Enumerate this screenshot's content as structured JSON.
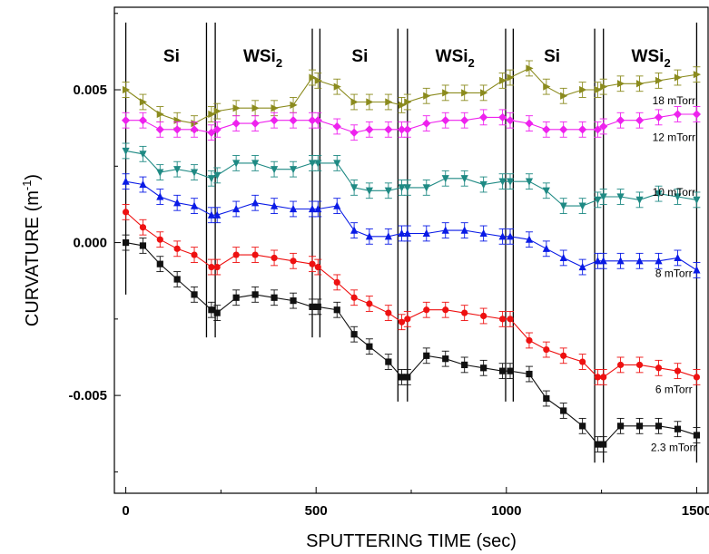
{
  "chart_data": {
    "type": "line",
    "xlabel": "SPUTTERING TIME (sec)",
    "ylabel": "CURVATURE (m",
    "ylabel_sup": "-1",
    "ylabel_end": ")",
    "xlim": [
      -30,
      1530
    ],
    "ylim": [
      -0.0082,
      0.0077
    ],
    "x_ticks": [
      0,
      500,
      1000,
      1500
    ],
    "x_tick_labels": [
      "0",
      "500",
      "1000",
      "1500"
    ],
    "y_ticks": [
      -0.005,
      0.0,
      0.005
    ],
    "y_tick_labels": [
      "-0.005",
      "0.000",
      "0.005"
    ],
    "grid": false,
    "regions": [
      {
        "label": "Si",
        "sub": "",
        "x_center": 120
      },
      {
        "label": "WSi",
        "sub": "2",
        "x_center": 360
      },
      {
        "label": "Si",
        "sub": "",
        "x_center": 615
      },
      {
        "label": "WSi",
        "sub": "2",
        "x_center": 865
      },
      {
        "label": "Si",
        "sub": "",
        "x_center": 1120
      },
      {
        "label": "WSi",
        "sub": "2",
        "x_center": 1380
      }
    ],
    "boundary_lines": [
      {
        "x": 0,
        "y_top": 0.0072,
        "y_bottom": -0.0017
      },
      {
        "x": 212,
        "y_top": 0.0072,
        "y_bottom": -0.0031
      },
      {
        "x": 235,
        "y_top": 0.0072,
        "y_bottom": -0.0031
      },
      {
        "x": 490,
        "y_top": 0.007,
        "y_bottom": -0.0031
      },
      {
        "x": 510,
        "y_top": 0.007,
        "y_bottom": -0.0031
      },
      {
        "x": 715,
        "y_top": 0.007,
        "y_bottom": -0.0052
      },
      {
        "x": 740,
        "y_top": 0.007,
        "y_bottom": -0.0052
      },
      {
        "x": 998,
        "y_top": 0.007,
        "y_bottom": -0.0052
      },
      {
        "x": 1018,
        "y_top": 0.007,
        "y_bottom": -0.0052
      },
      {
        "x": 1232,
        "y_top": 0.007,
        "y_bottom": -0.0072
      },
      {
        "x": 1255,
        "y_top": 0.007,
        "y_bottom": -0.0072
      },
      {
        "x": 1500,
        "y_top": 0.0072,
        "y_bottom": -0.0072
      }
    ],
    "x": [
      0,
      45,
      90,
      135,
      180,
      225,
      240,
      290,
      340,
      390,
      440,
      490,
      505,
      555,
      600,
      640,
      690,
      725,
      740,
      790,
      840,
      890,
      940,
      990,
      1010,
      1060,
      1105,
      1150,
      1200,
      1240,
      1255,
      1300,
      1350,
      1400,
      1450,
      1500
    ],
    "series": [
      {
        "name": "18 mTorr",
        "color": "#8b8b1e",
        "marker": "triangle-right",
        "label_value": 0.00465,
        "label_x": 1440,
        "values": [
          0.005,
          0.0046,
          0.0042,
          0.004,
          0.0039,
          0.0042,
          0.0043,
          0.0044,
          0.0044,
          0.0044,
          0.0045,
          0.0054,
          0.0053,
          0.0051,
          0.0046,
          0.0046,
          0.0046,
          0.0045,
          0.0046,
          0.0048,
          0.0049,
          0.0049,
          0.0049,
          0.0053,
          0.0054,
          0.0057,
          0.0051,
          0.0048,
          0.005,
          0.005,
          0.0051,
          0.0052,
          0.0052,
          0.0053,
          0.0054,
          0.0055
        ]
      },
      {
        "name": "12 mTorr",
        "color": "#ee22ee",
        "marker": "diamond",
        "label_value": 0.00345,
        "label_x": 1440,
        "values": [
          0.004,
          0.004,
          0.0037,
          0.0037,
          0.0037,
          0.0036,
          0.0037,
          0.0039,
          0.0039,
          0.004,
          0.004,
          0.004,
          0.004,
          0.0038,
          0.0036,
          0.0037,
          0.0037,
          0.0037,
          0.0037,
          0.0039,
          0.004,
          0.004,
          0.0041,
          0.0041,
          0.004,
          0.0039,
          0.0037,
          0.0037,
          0.0037,
          0.0037,
          0.0038,
          0.004,
          0.004,
          0.0041,
          0.0042,
          0.0042
        ]
      },
      {
        "name": "10 mTorr",
        "color": "#1f8a84",
        "marker": "triangle-down",
        "label_value": 0.00165,
        "label_x": 1440,
        "values": [
          0.003,
          0.0029,
          0.0023,
          0.0024,
          0.0023,
          0.0021,
          0.0022,
          0.0026,
          0.0026,
          0.0024,
          0.0024,
          0.0026,
          0.0026,
          0.0026,
          0.0018,
          0.0017,
          0.0017,
          0.0018,
          0.0018,
          0.0018,
          0.0021,
          0.0021,
          0.0019,
          0.002,
          0.002,
          0.002,
          0.0017,
          0.0012,
          0.0012,
          0.0014,
          0.0015,
          0.0015,
          0.0014,
          0.0016,
          0.0015,
          0.0014
        ]
      },
      {
        "name": "8 mTorr",
        "color": "#0a1be6",
        "marker": "triangle-up",
        "label_value": -0.001,
        "label_x": 1440,
        "values": [
          0.002,
          0.0019,
          0.0015,
          0.0013,
          0.0012,
          0.0009,
          0.0009,
          0.0011,
          0.0013,
          0.0012,
          0.0011,
          0.0011,
          0.0011,
          0.0012,
          0.0004,
          0.0002,
          0.0002,
          0.0003,
          0.0003,
          0.0003,
          0.0004,
          0.0004,
          0.0003,
          0.0002,
          0.0002,
          0.0001,
          -0.0002,
          -0.0005,
          -0.0008,
          -0.0006,
          -0.0006,
          -0.0006,
          -0.0006,
          -0.0006,
          -0.0005,
          -0.0009
        ]
      },
      {
        "name": "6 mTorr",
        "color": "#ee1111",
        "marker": "circle",
        "label_value": -0.0048,
        "label_x": 1440,
        "values": [
          0.001,
          0.0005,
          0.0001,
          -0.0002,
          -0.0004,
          -0.0008,
          -0.0008,
          -0.0004,
          -0.0004,
          -0.0005,
          -0.0006,
          -0.0007,
          -0.0008,
          -0.0013,
          -0.0018,
          -0.002,
          -0.0023,
          -0.0026,
          -0.0025,
          -0.0022,
          -0.0022,
          -0.0023,
          -0.0024,
          -0.0025,
          -0.0025,
          -0.0032,
          -0.0035,
          -0.0037,
          -0.0039,
          -0.0044,
          -0.0044,
          -0.004,
          -0.004,
          -0.0041,
          -0.0042,
          -0.0044
        ]
      },
      {
        "name": "2.3 mTorr",
        "color": "#111111",
        "marker": "square",
        "label_value": -0.0067,
        "label_x": 1440,
        "values": [
          0.0,
          -0.0001,
          -0.0007,
          -0.0012,
          -0.0017,
          -0.0022,
          -0.0023,
          -0.0018,
          -0.0017,
          -0.0018,
          -0.0019,
          -0.0021,
          -0.0021,
          -0.0022,
          -0.003,
          -0.0034,
          -0.0039,
          -0.0044,
          -0.0044,
          -0.0037,
          -0.0038,
          -0.004,
          -0.0041,
          -0.0042,
          -0.0042,
          -0.0043,
          -0.0051,
          -0.0055,
          -0.006,
          -0.0066,
          -0.0066,
          -0.006,
          -0.006,
          -0.006,
          -0.0061,
          -0.0063
        ]
      }
    ],
    "error_bar_half": 0.00025
  }
}
